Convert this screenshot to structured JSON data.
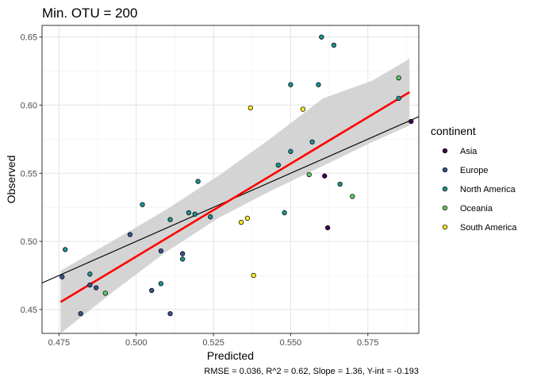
{
  "chart_data": {
    "type": "scatter",
    "title": "Min. OTU = 200",
    "xlabel": "Predicted",
    "ylabel": "Observed",
    "xlim": [
      0.4695,
      0.5915
    ],
    "ylim": [
      0.4325,
      0.6585
    ],
    "x_ticks": [
      0.475,
      0.5,
      0.525,
      0.55,
      0.575
    ],
    "x_tick_labels": [
      "0.475",
      "0.500",
      "0.525",
      "0.550",
      "0.575"
    ],
    "y_ticks": [
      0.45,
      0.5,
      0.55,
      0.6,
      0.65
    ],
    "y_tick_labels": [
      "0.45",
      "0.50",
      "0.55",
      "0.60",
      "0.65"
    ],
    "grid": true,
    "legend_title": "continent",
    "legend_position": "right",
    "colors": {
      "Asia": "#440154",
      "Europe": "#3b528b",
      "North America": "#21908c",
      "Oceania": "#5dc863",
      "South America": "#fde725"
    },
    "series": [
      {
        "name": "Asia",
        "points": [
          [
            0.561,
            0.548
          ],
          [
            0.562,
            0.51
          ],
          [
            0.589,
            0.588
          ]
        ]
      },
      {
        "name": "Europe",
        "points": [
          [
            0.476,
            0.474
          ],
          [
            0.482,
            0.447
          ],
          [
            0.487,
            0.466
          ],
          [
            0.498,
            0.505
          ],
          [
            0.505,
            0.464
          ],
          [
            0.508,
            0.493
          ],
          [
            0.511,
            0.447
          ],
          [
            0.515,
            0.491
          ],
          [
            0.485,
            0.468
          ]
        ]
      },
      {
        "name": "North America",
        "points": [
          [
            0.477,
            0.494
          ],
          [
            0.485,
            0.476
          ],
          [
            0.502,
            0.527
          ],
          [
            0.508,
            0.469
          ],
          [
            0.511,
            0.516
          ],
          [
            0.515,
            0.487
          ],
          [
            0.517,
            0.521
          ],
          [
            0.519,
            0.52
          ],
          [
            0.52,
            0.544
          ],
          [
            0.524,
            0.518
          ],
          [
            0.546,
            0.556
          ],
          [
            0.548,
            0.521
          ],
          [
            0.55,
            0.566
          ],
          [
            0.55,
            0.615
          ],
          [
            0.557,
            0.573
          ],
          [
            0.559,
            0.615
          ],
          [
            0.56,
            0.65
          ],
          [
            0.564,
            0.644
          ],
          [
            0.566,
            0.542
          ],
          [
            0.585,
            0.605
          ]
        ]
      },
      {
        "name": "Oceania",
        "points": [
          [
            0.49,
            0.462
          ],
          [
            0.556,
            0.549
          ],
          [
            0.57,
            0.533
          ],
          [
            0.585,
            0.62
          ]
        ]
      },
      {
        "name": "South America",
        "points": [
          [
            0.534,
            0.514
          ],
          [
            0.536,
            0.517
          ],
          [
            0.537,
            0.598
          ],
          [
            0.538,
            0.475
          ],
          [
            0.554,
            0.597
          ]
        ]
      }
    ],
    "regression_line": {
      "color": "#ff0000",
      "points": [
        [
          0.4755,
          0.4555
        ],
        [
          0.5885,
          0.6095
        ]
      ]
    },
    "confidence_band": {
      "color": "#cccccc",
      "x": [
        0.4755,
        0.4925,
        0.5095,
        0.5265,
        0.5435,
        0.5605,
        0.5765,
        0.5885
      ],
      "lower": [
        0.4325,
        0.463,
        0.492,
        0.517,
        0.537,
        0.5555,
        0.573,
        0.585
      ],
      "upper": [
        0.4785,
        0.5005,
        0.523,
        0.548,
        0.5755,
        0.605,
        0.618,
        0.634
      ]
    },
    "identity_line": {
      "color": "#000000",
      "points": [
        [
          0.4695,
          0.4695
        ],
        [
          0.5915,
          0.5915
        ]
      ]
    },
    "caption": "RMSE = 0.036, R^2 = 0.62, Slope = 1.36, Y-int = -0.193"
  }
}
